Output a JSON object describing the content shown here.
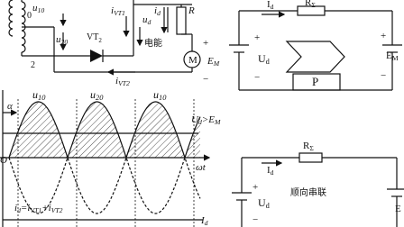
{
  "top_left": {
    "labels": [
      [
        {
          "t": "u",
          "s": "10"
        }
      ],
      [
        {
          "t": "0"
        }
      ],
      [
        {
          "t": "u",
          "s": "20"
        }
      ],
      [
        {
          "t": "2"
        }
      ],
      [
        {
          "t": "VT",
          "s": "2"
        }
      ],
      [
        {
          "t": "i",
          "s": "VT1"
        }
      ],
      [
        {
          "t": "u",
          "s": "d"
        }
      ],
      [
        {
          "t": "i",
          "s": "d"
        }
      ],
      [
        {
          "t": "R"
        }
      ],
      [
        {
          "t": "电能"
        }
      ],
      [
        {
          "t": "M"
        }
      ],
      [
        {
          "t": "E",
          "s": "M"
        }
      ],
      [
        {
          "t": "+"
        }
      ],
      [
        {
          "t": "−"
        }
      ],
      [
        {
          "t": "i",
          "s": "VT2"
        }
      ]
    ]
  },
  "top_right": {
    "labels": [
      [
        {
          "t": "I",
          "s": "d"
        }
      ],
      [
        {
          "t": "R",
          "s": "Σ"
        }
      ],
      [
        {
          "t": "+"
        }
      ],
      [
        {
          "t": "U",
          "s": "d"
        }
      ],
      [
        {
          "t": "−"
        }
      ],
      [
        {
          "t": "P"
        }
      ],
      [
        {
          "t": "+"
        }
      ],
      [
        {
          "t": "E",
          "s": "M"
        }
      ],
      [
        {
          "t": "−"
        }
      ]
    ]
  },
  "waveform": {
    "labels": [
      [
        {
          "t": "α"
        }
      ],
      [
        {
          "t": "u",
          "s": "10"
        }
      ],
      [
        {
          "t": "u",
          "s": "20"
        }
      ],
      [
        {
          "t": "u",
          "s": "10"
        }
      ],
      [
        {
          "t": "U",
          "s": "d"
        },
        {
          "t": ">E",
          "s": "M"
        }
      ],
      [
        {
          "t": "O"
        }
      ],
      [
        {
          "t": "ωt"
        }
      ],
      [
        {
          "t": "i",
          "s": "d"
        },
        {
          "t": "=i",
          "s": "VT1"
        },
        {
          "t": "+i",
          "s": "VT2"
        }
      ],
      [
        {
          "t": "I",
          "s": "d"
        }
      ]
    ]
  },
  "bottom_right": {
    "labels": [
      [
        {
          "t": "R",
          "s": "Σ"
        }
      ],
      [
        {
          "t": "I",
          "s": "d"
        }
      ],
      [
        {
          "t": "+"
        }
      ],
      [
        {
          "t": "U",
          "s": "d"
        }
      ],
      [
        {
          "t": "−"
        }
      ],
      [
        {
          "t": "顺向串联"
        }
      ],
      [
        {
          "t": "E"
        }
      ]
    ]
  }
}
